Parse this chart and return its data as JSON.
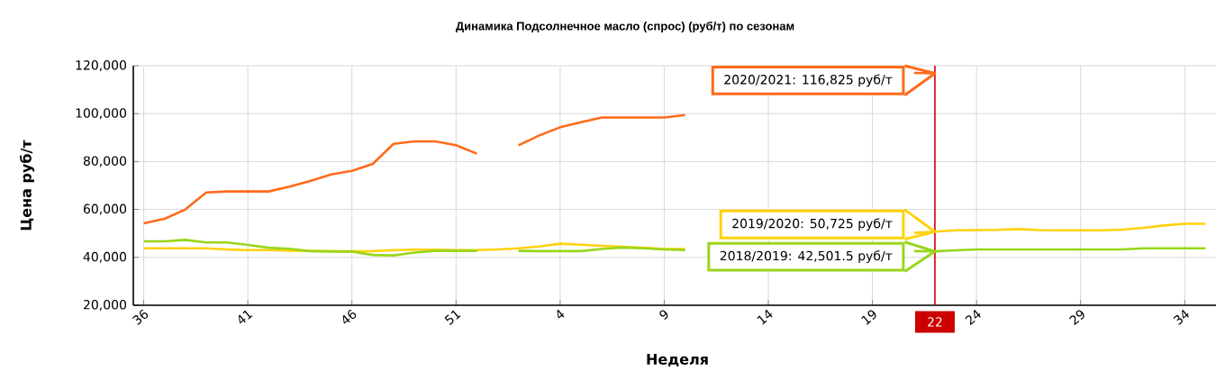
{
  "chart_data": {
    "type": "line",
    "title": "Динамика Подсолнечное масло (спрос) (руб/т) по сезонам",
    "xlabel": "Неделя",
    "ylabel": "Цена руб/т",
    "categories": [
      "36",
      null,
      null,
      null,
      null,
      "41",
      null,
      null,
      null,
      null,
      "46",
      null,
      null,
      null,
      null,
      "51",
      null,
      null,
      null,
      null,
      "4",
      null,
      null,
      null,
      null,
      "9",
      null,
      null,
      null,
      null,
      "14",
      null,
      null,
      null,
      null,
      "19",
      null,
      null,
      "22",
      null,
      "24",
      null,
      null,
      null,
      null,
      "29",
      null,
      null,
      null,
      null,
      "34",
      null
    ],
    "series": [
      {
        "color": "#ff6a1a",
        "values": [
          54200,
          56100,
          60000,
          67100,
          67500,
          67500,
          67500,
          69500,
          71900,
          74600,
          76100,
          79000,
          87400,
          88400,
          88400,
          86800,
          83300,
          null,
          86800,
          90900,
          94300,
          96400,
          98400,
          98400,
          98400,
          98400,
          99400,
          null,
          null,
          null,
          null,
          null,
          null,
          null,
          null,
          null,
          null,
          117000,
          116825,
          null,
          null,
          null,
          null,
          null,
          null,
          null,
          null,
          null,
          null,
          null,
          null,
          null
        ]
      },
      {
        "color": "#ffd20a",
        "values": [
          43800,
          43800,
          43800,
          43800,
          43300,
          43000,
          43000,
          42800,
          42700,
          42600,
          42500,
          42600,
          43000,
          43200,
          43200,
          43000,
          43000,
          43300,
          43800,
          44500,
          45700,
          45300,
          44800,
          44400,
          44000,
          43500,
          43500,
          null,
          null,
          null,
          null,
          null,
          null,
          null,
          null,
          null,
          null,
          50200,
          50725,
          51300,
          51400,
          51500,
          51800,
          51400,
          51300,
          51300,
          51300,
          51600,
          52300,
          53300,
          54000,
          54000
        ]
      },
      {
        "color": "#99d61a",
        "values": [
          46700,
          46700,
          47300,
          46200,
          46200,
          45200,
          44000,
          43600,
          42600,
          42400,
          42400,
          41000,
          40800,
          42000,
          42700,
          42700,
          42700,
          null,
          42700,
          42600,
          42600,
          42600,
          43500,
          44100,
          43800,
          43300,
          43000,
          null,
          null,
          null,
          null,
          null,
          null,
          null,
          null,
          null,
          null,
          42600,
          42501.5,
          42900,
          43300,
          43300,
          43300,
          43300,
          43300,
          43300,
          43300,
          43300,
          43800,
          43800,
          43800,
          43800
        ]
      }
    ],
    "ylim": [
      20000,
      120000
    ],
    "yticks": [
      {
        "value": 20000,
        "label": "20,000"
      },
      {
        "value": 40000,
        "label": "40,000"
      },
      {
        "value": 60000,
        "label": "60,000"
      },
      {
        "value": 80000,
        "label": "80,000"
      },
      {
        "value": 100000,
        "label": "100,000"
      },
      {
        "value": 120000,
        "label": "120,000"
      }
    ],
    "grid": true,
    "marker": "none",
    "line_style": "solid",
    "ref_lines": [
      {
        "axis": "x",
        "value": "22",
        "color": "#cc0000"
      }
    ],
    "annotations": [
      "2020/2021: 116,825 руб/т",
      "2019/2020: 50,725 руб/т",
      "2018/2019: 42,501.5 руб/т"
    ]
  }
}
